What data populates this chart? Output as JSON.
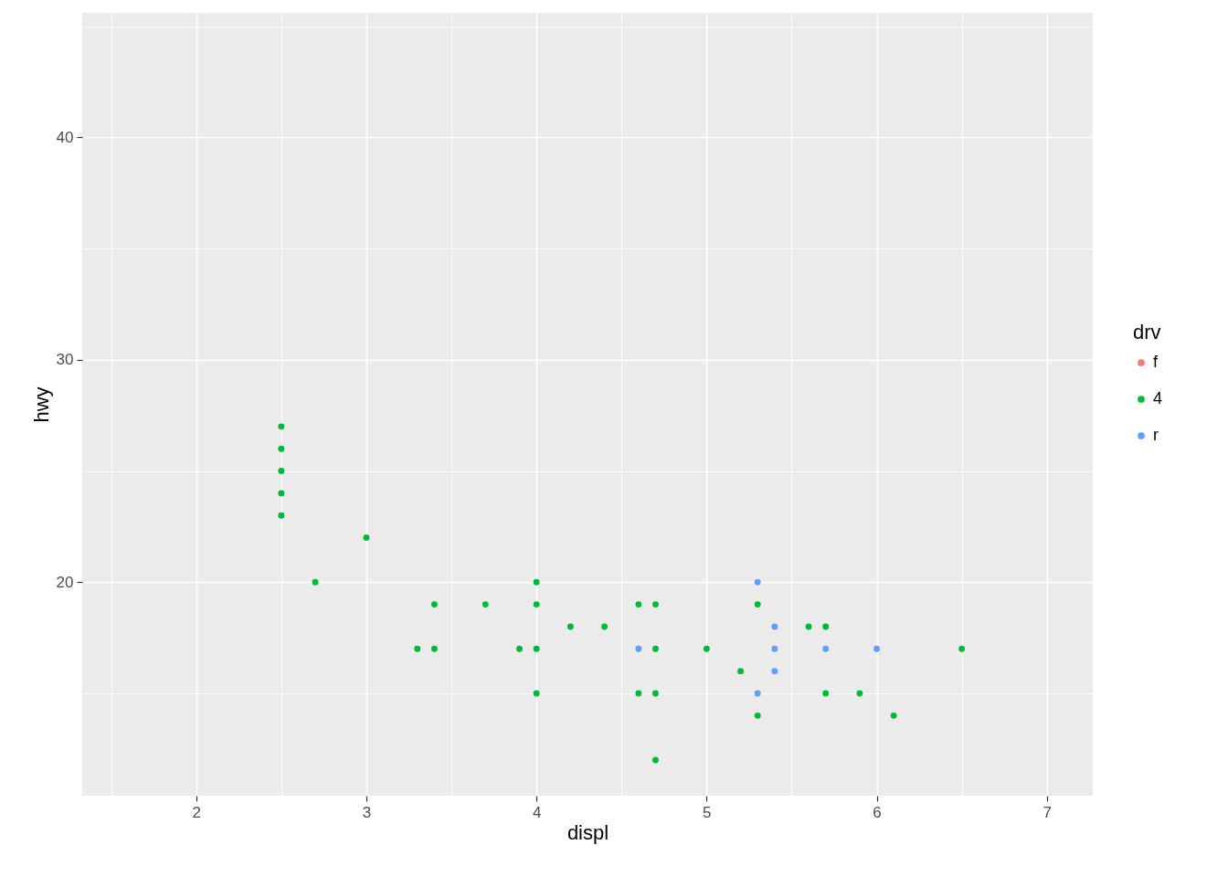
{
  "chart_data": {
    "type": "scatter",
    "xlabel": "displ",
    "ylabel": "hwy",
    "legend_title": "drv",
    "legend": "right",
    "grid": true,
    "marker": "circle",
    "xlim": [
      1.33,
      7.27
    ],
    "xticks": [
      2,
      3,
      4,
      5,
      6,
      7
    ],
    "ylim": [
      10.4,
      45.6
    ],
    "yticks": [
      20,
      30,
      40
    ],
    "series": [
      {
        "name": "f",
        "color": "#f8766d"
      },
      {
        "name": "4",
        "color": "#00ba38",
        "x": [
          2.5,
          2.5,
          2.5,
          2.5,
          2.5,
          2.7,
          3.0,
          3.3,
          3.4,
          3.4,
          3.7,
          3.9,
          4.0,
          4.0,
          4.0,
          4.0,
          4.2,
          4.4,
          4.6,
          4.6,
          4.7,
          4.7,
          4.7,
          4.7,
          5.0,
          5.2,
          5.3,
          5.3,
          5.6,
          5.7,
          5.7,
          5.9,
          6.1,
          6.5
        ],
        "values": [
          27,
          26,
          25,
          24,
          23,
          20,
          22,
          17,
          19,
          17,
          19,
          17,
          20,
          19,
          17,
          15,
          18,
          18,
          19,
          15,
          19,
          17,
          15,
          12,
          17,
          16,
          19,
          14,
          18,
          18,
          15,
          15,
          14,
          17
        ]
      },
      {
        "name": "r",
        "color": "#619cff",
        "x": [
          4.6,
          5.3,
          5.3,
          5.4,
          5.4,
          5.4,
          5.7,
          6.0
        ],
        "values": [
          17,
          20,
          15,
          18,
          17,
          16,
          17,
          17
        ]
      }
    ]
  }
}
